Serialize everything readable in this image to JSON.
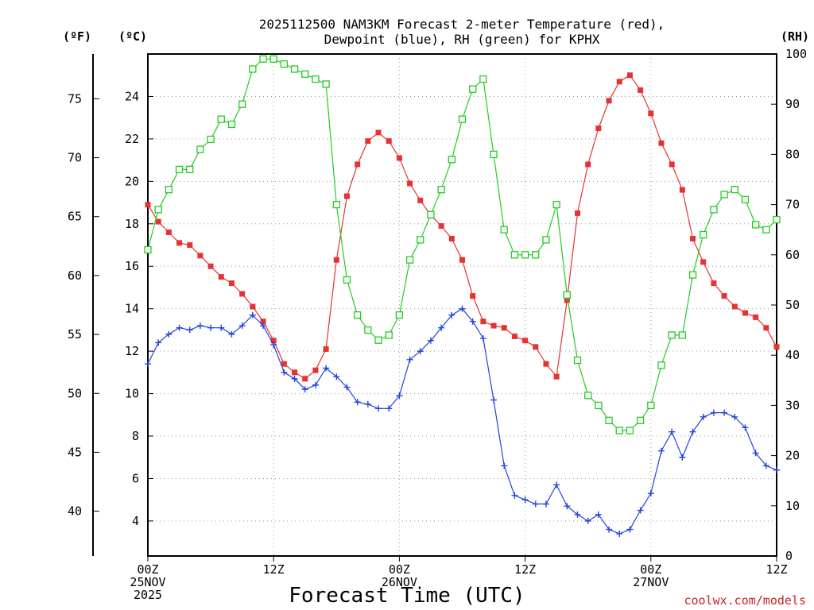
{
  "chart_data": {
    "type": "line",
    "title_lines": [
      "2025112500 NAM3KM Forecast 2-meter Temperature (red),",
      "Dewpoint (blue), RH (green) for KPHX"
    ],
    "xlabel": "Forecast Time (UTC)",
    "credit": "coolwx.com/models",
    "x_range": [
      0,
      60
    ],
    "x_ticks": [
      {
        "x": 0,
        "lines": [
          "00Z",
          "25NOV",
          "2025"
        ]
      },
      {
        "x": 12,
        "lines": [
          "12Z"
        ]
      },
      {
        "x": 24,
        "lines": [
          "00Z",
          "26NOV"
        ]
      },
      {
        "x": 36,
        "lines": [
          "12Z"
        ]
      },
      {
        "x": 48,
        "lines": [
          "00Z",
          "27NOV"
        ]
      },
      {
        "x": 60,
        "lines": [
          "12Z"
        ]
      }
    ],
    "left_axis_c": {
      "label": "(ºC)",
      "range": [
        2.35,
        26.0
      ],
      "ticks": [
        4,
        6,
        8,
        10,
        12,
        14,
        16,
        18,
        20,
        22,
        24
      ]
    },
    "left_axis_f": {
      "label": "(ºF)",
      "range": [
        36.2,
        78.8
      ],
      "ticks": [
        40,
        45,
        50,
        55,
        60,
        65,
        70,
        75
      ]
    },
    "right_axis_rh": {
      "label": "(RH)",
      "range": [
        0,
        100
      ],
      "ticks": [
        0,
        10,
        20,
        30,
        40,
        50,
        60,
        70,
        80,
        90,
        100
      ]
    },
    "grid": true,
    "x": [
      0,
      1,
      2,
      3,
      4,
      5,
      6,
      7,
      8,
      9,
      10,
      11,
      12,
      13,
      14,
      15,
      16,
      17,
      18,
      19,
      20,
      21,
      22,
      23,
      24,
      25,
      26,
      27,
      28,
      29,
      30,
      31,
      32,
      33,
      34,
      35,
      36,
      37,
      38,
      39,
      40,
      41,
      42,
      43,
      44,
      45,
      46,
      47,
      48,
      49,
      50,
      51,
      52,
      53,
      54,
      55,
      56,
      57,
      58,
      59,
      60
    ],
    "series": [
      {
        "name": "2-meter Temperature",
        "unit": "°C",
        "axis": "left",
        "color": "#e63232",
        "marker": "filled-square",
        "values": [
          18.9,
          18.1,
          17.6,
          17.1,
          17.0,
          16.5,
          16.0,
          15.5,
          15.2,
          14.7,
          14.1,
          13.4,
          12.5,
          11.4,
          11.0,
          10.7,
          11.1,
          12.1,
          16.3,
          19.3,
          20.8,
          21.9,
          22.3,
          21.9,
          21.1,
          19.9,
          19.1,
          18.4,
          17.9,
          17.3,
          16.3,
          14.6,
          13.4,
          13.2,
          13.1,
          12.7,
          12.5,
          12.2,
          11.4,
          10.8,
          14.4,
          18.5,
          20.8,
          22.5,
          23.8,
          24.7,
          25.0,
          24.3,
          23.2,
          21.8,
          20.8,
          19.6,
          17.3,
          16.2,
          15.2,
          14.6,
          14.1,
          13.8,
          13.6,
          13.1,
          12.2
        ]
      },
      {
        "name": "Dewpoint",
        "unit": "°C",
        "axis": "left",
        "color": "#2244dd",
        "marker": "plus",
        "values": [
          11.4,
          12.4,
          12.8,
          13.1,
          13.0,
          13.2,
          13.1,
          13.1,
          12.8,
          13.2,
          13.7,
          13.2,
          12.3,
          11.0,
          10.7,
          10.2,
          10.4,
          11.2,
          10.8,
          10.3,
          9.6,
          9.5,
          9.3,
          9.3,
          9.9,
          11.6,
          12.0,
          12.5,
          13.1,
          13.7,
          14.0,
          13.4,
          12.6,
          9.7,
          6.6,
          5.2,
          5.0,
          4.8,
          4.8,
          5.7,
          4.7,
          4.3,
          4.0,
          4.3,
          3.6,
          3.4,
          3.6,
          4.5,
          5.3,
          7.3,
          8.2,
          7.0,
          8.2,
          8.9,
          9.1,
          9.1,
          8.9,
          8.4,
          7.2,
          6.6,
          6.4
        ]
      },
      {
        "name": "RH",
        "unit": "%",
        "axis": "right",
        "color": "#22cc22",
        "marker": "open-square",
        "values": [
          61,
          69,
          73,
          77,
          77,
          81,
          83,
          87,
          86,
          90,
          97,
          99,
          99,
          98,
          97,
          96,
          95,
          94,
          70,
          55,
          48,
          45,
          43,
          44,
          48,
          59,
          63,
          68,
          73,
          79,
          87,
          93,
          95,
          80,
          65,
          60,
          60,
          60,
          63,
          70,
          52,
          39,
          32,
          30,
          27,
          25,
          25,
          27,
          30,
          38,
          44,
          44,
          56,
          64,
          69,
          72,
          73,
          71,
          66,
          65,
          67
        ]
      }
    ]
  }
}
